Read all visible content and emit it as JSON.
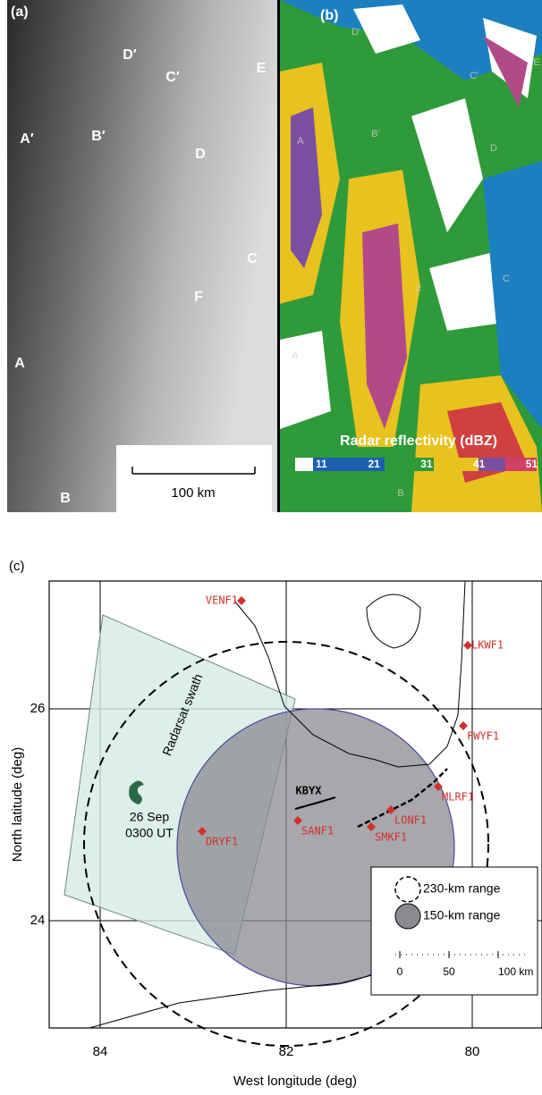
{
  "panel_a": {
    "label": "(a)",
    "points": [
      "D′",
      "C′",
      "E",
      "A′",
      "B′",
      "D",
      "C",
      "F",
      "A",
      "B"
    ],
    "scale_bar": "100 km"
  },
  "panel_b": {
    "label": "(b)",
    "points": [
      "D′",
      "C′",
      "E",
      "A",
      "B′",
      "D",
      "C",
      "F",
      "A",
      "B"
    ],
    "colorbar_title": "Radar reflectivity (dBZ)",
    "colorbar_ticks": [
      11,
      21,
      31,
      41,
      51
    ]
  },
  "panel_c": {
    "label": "(c)",
    "xlabel": "West longitude (deg)",
    "ylabel": "North latitude (deg)",
    "xticks": [
      84,
      82,
      80
    ],
    "yticks": [
      26,
      24
    ],
    "swath_label": "Radarsat swath",
    "storm_label": [
      "26 Sep",
      "0300 UT"
    ],
    "radar": "KBYX",
    "stations": [
      "VENF1",
      "LKWF1",
      "FWYF1",
      "MLRF1",
      "LONF1",
      "SMKF1",
      "SANF1",
      "DRYF1"
    ],
    "legend": [
      "230-km range",
      "150-km range"
    ],
    "scale_ticks": [
      0,
      50,
      {
        "value": 100,
        "label": "100 km"
      }
    ]
  }
}
